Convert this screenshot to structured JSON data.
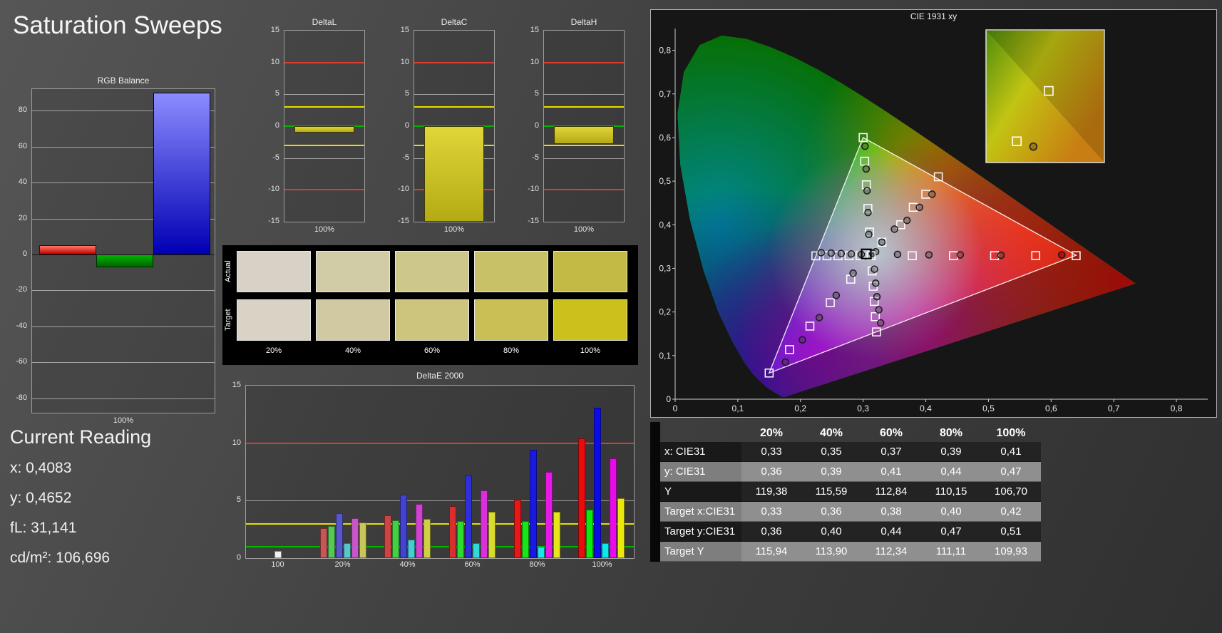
{
  "page": {
    "title": "Saturation Sweeps"
  },
  "current_reading": {
    "title": "Current Reading",
    "lines": [
      {
        "label": "x:",
        "value": "0,4083"
      },
      {
        "label": "y:",
        "value": "0,4652"
      },
      {
        "label": "fL:",
        "value": "31,141"
      },
      {
        "label": "cd/m²:",
        "value": "106,696"
      }
    ]
  },
  "swatches": {
    "row_labels": [
      "Actual",
      "Target"
    ],
    "col_labels": [
      "20%",
      "40%",
      "60%",
      "80%",
      "100%"
    ],
    "actual_colors": [
      "#d7d2c5",
      "#d1cba6",
      "#cdc78a",
      "#c9c167",
      "#c2ba45"
    ],
    "target_colors": [
      "#d8d3c5",
      "#d0c9a1",
      "#cdc57e",
      "#cabf55",
      "#ccc11c"
    ]
  },
  "table": {
    "col_headers": [
      "20%",
      "40%",
      "60%",
      "80%",
      "100%"
    ],
    "rows": [
      {
        "label": "x: CIE31",
        "shade": "dark",
        "values": [
          "0,33",
          "0,35",
          "0,37",
          "0,39",
          "0,41"
        ]
      },
      {
        "label": "y: CIE31",
        "shade": "light",
        "values": [
          "0,36",
          "0,39",
          "0,41",
          "0,44",
          "0,47"
        ]
      },
      {
        "label": "Y",
        "shade": "dark",
        "values": [
          "119,38",
          "115,59",
          "112,84",
          "110,15",
          "106,70"
        ]
      },
      {
        "label": "Target x:CIE31",
        "shade": "light",
        "values": [
          "0,33",
          "0,36",
          "0,38",
          "0,40",
          "0,42"
        ]
      },
      {
        "label": "Target y:CIE31",
        "shade": "dark",
        "values": [
          "0,36",
          "0,40",
          "0,44",
          "0,47",
          "0,51"
        ]
      },
      {
        "label": "Target Y",
        "shade": "light",
        "values": [
          "115,94",
          "113,90",
          "112,34",
          "111,11",
          "109,93"
        ]
      }
    ]
  },
  "chart_data": {
    "rgb_balance": {
      "type": "bar",
      "title": "RGB Balance",
      "xlabel": "100%",
      "ylim": [
        -88,
        92
      ],
      "yticks": [
        80,
        60,
        40,
        20,
        0,
        -20,
        -40,
        -60,
        -80
      ],
      "series": [
        {
          "name": "red",
          "value": 5
        },
        {
          "name": "green",
          "value": -7
        },
        {
          "name": "blue",
          "value": 90
        }
      ]
    },
    "delta_style": {
      "ylim": [
        -15,
        15
      ],
      "yticks": [
        15,
        10,
        5,
        0,
        -5,
        -10,
        -15
      ],
      "gray_gridlines": [
        5,
        -5
      ],
      "limits": [
        {
          "y": 10,
          "c": "#e03a30"
        },
        {
          "y": -10,
          "c": "#e03a30"
        },
        {
          "y": 3,
          "c": "#e6de00"
        },
        {
          "y": -3,
          "c": "#e6de00"
        },
        {
          "y": 0,
          "c": "#00b400"
        }
      ]
    },
    "delta_charts": [
      {
        "type": "bar",
        "title": "DeltaL",
        "xlabel": "100%",
        "value": -1.0
      },
      {
        "type": "bar",
        "title": "DeltaC",
        "xlabel": "100%",
        "value": -15.4
      },
      {
        "type": "bar",
        "title": "DeltaH",
        "xlabel": "100%",
        "value": -2.8
      }
    ],
    "deltae": {
      "type": "bar",
      "title": "DeltaE 2000",
      "ylim": [
        0,
        15
      ],
      "yticks": [
        0,
        5,
        10,
        15
      ],
      "gray_gridlines": [
        5
      ],
      "limits": [
        {
          "y": 10,
          "c": "#e03a30"
        },
        {
          "y": 3,
          "c": "#e6de00"
        },
        {
          "y": 1,
          "c": "#00b400"
        }
      ],
      "series_names": [
        "red",
        "green",
        "blue",
        "cyan",
        "magenta",
        "yellow"
      ],
      "groups": [
        {
          "label": "100",
          "values": [
            0.6
          ]
        },
        {
          "label": "20%",
          "values": [
            2.6,
            2.8,
            3.9,
            1.3,
            3.5,
            3.1
          ]
        },
        {
          "label": "40%",
          "values": [
            3.7,
            3.3,
            5.5,
            1.6,
            4.7,
            3.4
          ]
        },
        {
          "label": "60%",
          "values": [
            4.5,
            3.2,
            7.2,
            1.3,
            5.9,
            4.0
          ]
        },
        {
          "label": "80%",
          "values": [
            5.1,
            3.2,
            9.4,
            1.0,
            7.5,
            4.0
          ]
        },
        {
          "label": "100%",
          "values": [
            10.4,
            4.2,
            13.1,
            1.3,
            8.7,
            5.2
          ]
        }
      ]
    },
    "cie": {
      "type": "scatter",
      "title": "CIE 1931 xy",
      "axis_max": 0.85,
      "xticks": [
        "0",
        "0,1",
        "0,2",
        "0,3",
        "0,4",
        "0,5",
        "0,6",
        "0,7",
        "0,8"
      ],
      "yticks": [
        "0",
        "0,1",
        "0,2",
        "0,3",
        "0,4",
        "0,5",
        "0,6",
        "0,7",
        "0,8"
      ],
      "locus": [
        [
          0.1741,
          0.005
        ],
        [
          0.1714,
          0.0051
        ],
        [
          0.1644,
          0.0109
        ],
        [
          0.1566,
          0.0177
        ],
        [
          0.144,
          0.0297
        ],
        [
          0.1241,
          0.0578
        ],
        [
          0.1096,
          0.0868
        ],
        [
          0.0913,
          0.1327
        ],
        [
          0.0687,
          0.2007
        ],
        [
          0.0454,
          0.295
        ],
        [
          0.0235,
          0.4127
        ],
        [
          0.0082,
          0.5384
        ],
        [
          0.0039,
          0.6548
        ],
        [
          0.0139,
          0.7502
        ],
        [
          0.0389,
          0.812
        ],
        [
          0.0743,
          0.8338
        ],
        [
          0.1142,
          0.8262
        ],
        [
          0.1547,
          0.8059
        ],
        [
          0.1929,
          0.7816
        ],
        [
          0.2296,
          0.7543
        ],
        [
          0.2658,
          0.7243
        ],
        [
          0.3016,
          0.6923
        ],
        [
          0.3373,
          0.6589
        ],
        [
          0.3731,
          0.6245
        ],
        [
          0.4087,
          0.5896
        ],
        [
          0.4441,
          0.5547
        ],
        [
          0.4788,
          0.5202
        ],
        [
          0.5125,
          0.4866
        ],
        [
          0.5448,
          0.4544
        ],
        [
          0.5752,
          0.4242
        ],
        [
          0.6029,
          0.3965
        ],
        [
          0.627,
          0.3725
        ],
        [
          0.6482,
          0.3514
        ],
        [
          0.6658,
          0.334
        ],
        [
          0.6915,
          0.3083
        ],
        [
          0.7079,
          0.292
        ],
        [
          0.719,
          0.2809
        ],
        [
          0.726,
          0.274
        ],
        [
          0.7347,
          0.2653
        ]
      ],
      "triangle": [
        [
          0.64,
          0.33
        ],
        [
          0.3,
          0.6
        ],
        [
          0.15,
          0.06
        ]
      ],
      "white_point": [
        0.3127,
        0.329
      ],
      "current_marker": [
        0.305,
        0.333
      ],
      "highlight_measured": [
        0.617,
        0.331
      ],
      "sweeps": [
        {
          "name": "red",
          "targets": [
            [
              0.3784,
              0.329
            ],
            [
              0.4441,
              0.3291
            ],
            [
              0.5098,
              0.3292
            ],
            [
              0.5755,
              0.3293
            ],
            [
              0.64,
              0.329
            ]
          ],
          "measured": [
            [
              0.355,
              0.332
            ],
            [
              0.405,
              0.331
            ],
            [
              0.455,
              0.331
            ],
            [
              0.52,
              0.33
            ],
            [
              0.617,
              0.331
            ]
          ]
        },
        {
          "name": "green",
          "targets": [
            [
              0.3102,
              0.3832
            ],
            [
              0.3076,
              0.4374
            ],
            [
              0.3051,
              0.4916
            ],
            [
              0.3025,
              0.5458
            ],
            [
              0.3,
              0.6
            ]
          ],
          "measured": [
            [
              0.309,
              0.378
            ],
            [
              0.3078,
              0.428
            ],
            [
              0.3062,
              0.478
            ],
            [
              0.3048,
              0.528
            ],
            [
              0.303,
              0.58
            ]
          ]
        },
        {
          "name": "blue",
          "targets": [
            [
              0.2802,
              0.2752
            ],
            [
              0.2476,
              0.2214
            ],
            [
              0.2151,
              0.1676
            ],
            [
              0.1825,
              0.1138
            ],
            [
              0.15,
              0.06
            ]
          ],
          "measured": [
            [
              0.284,
              0.289
            ],
            [
              0.257,
              0.238
            ],
            [
              0.23,
              0.187
            ],
            [
              0.203,
              0.136
            ],
            [
              0.176,
              0.085
            ]
          ]
        },
        {
          "name": "cyan",
          "targets": [
            [
              0.2951,
              0.3289
            ],
            [
              0.2775,
              0.3289
            ],
            [
              0.2599,
              0.3288
            ],
            [
              0.2423,
              0.3288
            ],
            [
              0.2246,
              0.3287
            ]
          ],
          "measured": [
            [
              0.297,
              0.332
            ],
            [
              0.281,
              0.333
            ],
            [
              0.265,
              0.334
            ],
            [
              0.249,
              0.335
            ],
            [
              0.233,
              0.336
            ]
          ]
        },
        {
          "name": "magenta",
          "targets": [
            [
              0.3144,
              0.294
            ],
            [
              0.3161,
              0.259
            ],
            [
              0.3178,
              0.2242
            ],
            [
              0.3195,
              0.1892
            ],
            [
              0.3212,
              0.1542
            ]
          ],
          "measured": [
            [
              0.318,
              0.298
            ],
            [
              0.32,
              0.266
            ],
            [
              0.322,
              0.235
            ],
            [
              0.325,
              0.205
            ],
            [
              0.328,
              0.175
            ]
          ]
        },
        {
          "name": "yellow",
          "targets": [
            [
              0.33,
              0.36
            ],
            [
              0.36,
              0.4
            ],
            [
              0.38,
              0.44
            ],
            [
              0.4,
              0.47
            ],
            [
              0.42,
              0.51
            ]
          ],
          "measured": [
            [
              0.33,
              0.36
            ],
            [
              0.35,
              0.39
            ],
            [
              0.37,
              0.41
            ],
            [
              0.39,
              0.44
            ],
            [
              0.41,
              0.47
            ]
          ]
        },
        {
          "name": "center",
          "targets": [
            [
              0.3127,
              0.329
            ]
          ],
          "measured": [
            [
              0.315,
              0.335
            ],
            [
              0.32,
              0.338
            ]
          ]
        }
      ],
      "inset": {
        "squares_rel": [
          [
            0.53,
            0.46
          ],
          [
            0.26,
            0.84
          ]
        ],
        "circles_rel": [
          [
            0.4,
            0.88
          ]
        ]
      }
    }
  }
}
